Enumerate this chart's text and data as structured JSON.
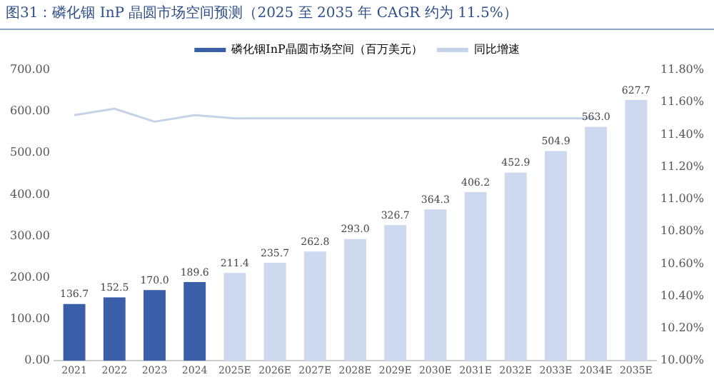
{
  "chart_data": {
    "type": "bar",
    "title": "图31：磷化铟 InP 晶圆市场空间预测（2025 至 2035 年 CAGR 约为 11.5%）",
    "categories": [
      "2021",
      "2022",
      "2023",
      "2024",
      "2025E",
      "2026E",
      "2027E",
      "2028E",
      "2029E",
      "2030E",
      "2031E",
      "2032E",
      "2033E",
      "2034E",
      "2035E"
    ],
    "series": [
      {
        "name": "磷化铟InP晶圆市场空间（百万美元）",
        "colors": [
          "#3a5fa8",
          "#3a5fa8",
          "#3a5fa8",
          "#3a5fa8",
          "#cdd9ee",
          "#cdd9ee",
          "#cdd9ee",
          "#cdd9ee",
          "#cdd9ee",
          "#cdd9ee",
          "#cdd9ee",
          "#cdd9ee",
          "#cdd9ee",
          "#cdd9ee",
          "#cdd9ee"
        ],
        "values": [
          136.7,
          152.5,
          170.0,
          189.6,
          211.4,
          235.7,
          262.8,
          293.0,
          326.7,
          364.3,
          406.2,
          452.9,
          504.9,
          563.0,
          627.7
        ],
        "value_labels": [
          "136.7",
          "152.5",
          "170.0",
          "189.6",
          "211.4",
          "235.7",
          "262.8",
          "293.0",
          "326.7",
          "364.3",
          "406.2",
          "452.9",
          "504.9",
          "563.0",
          "627.7"
        ]
      },
      {
        "name": "同比增速",
        "type": "line",
        "axis": "y2",
        "color": "#c5d3e8",
        "values": [
          11.52,
          11.56,
          11.48,
          11.52,
          11.5,
          11.5,
          11.5,
          11.5,
          11.5,
          11.5,
          11.5,
          11.5,
          11.5,
          11.5,
          null
        ]
      }
    ],
    "ylim": [
      0,
      700
    ],
    "yticks": [
      {
        "value": 0,
        "label": "0.00"
      },
      {
        "value": 100,
        "label": "100.00"
      },
      {
        "value": 200,
        "label": "200.00"
      },
      {
        "value": 300,
        "label": "300.00"
      },
      {
        "value": 400,
        "label": "400.00"
      },
      {
        "value": 500,
        "label": "500.00"
      },
      {
        "value": 600,
        "label": "600.00"
      },
      {
        "value": 700,
        "label": "700.00"
      }
    ],
    "y2lim": [
      10,
      11.8
    ],
    "y2ticks": [
      {
        "value": 10,
        "label": "10.00%"
      },
      {
        "value": 10.2,
        "label": "10.20%"
      },
      {
        "value": 10.4,
        "label": "10.40%"
      },
      {
        "value": 10.6,
        "label": "10.60%"
      },
      {
        "value": 10.8,
        "label": "10.80%"
      },
      {
        "value": 11,
        "label": "11.00%"
      },
      {
        "value": 11.2,
        "label": "11.20%"
      },
      {
        "value": 11.4,
        "label": "11.40%"
      },
      {
        "value": 11.6,
        "label": "11.60%"
      },
      {
        "value": 11.8,
        "label": "11.80%"
      }
    ],
    "legend": "top",
    "grid": false,
    "marker": "none",
    "line_style": "solid"
  }
}
